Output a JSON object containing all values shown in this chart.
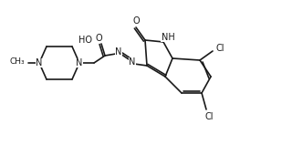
{
  "bg_color": "#ffffff",
  "line_color": "#1a1a1a",
  "line_width": 1.2,
  "font_size": 7,
  "atoms": {
    "N_methyl_label": "N",
    "N_piperazine_label": "N",
    "HO_label": "HO",
    "N_hydrazone1": "N",
    "N_hydrazone2": "N",
    "NH_label": "NH",
    "O_label": "O",
    "Cl_top_label": "Cl",
    "Cl_bottom_label": "Cl",
    "CH3_label": "CH₃"
  }
}
